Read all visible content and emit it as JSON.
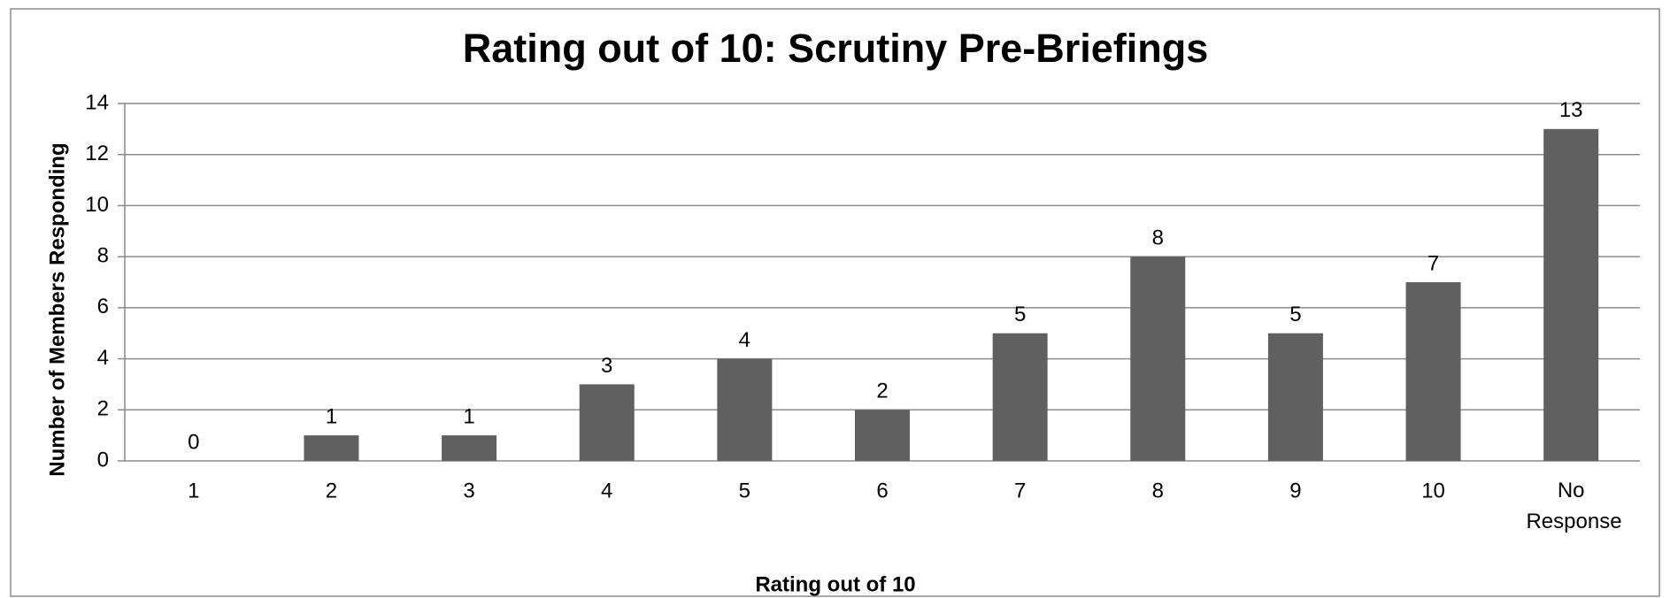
{
  "chart_data": {
    "type": "bar",
    "title": "Rating out of 10: Scrutiny Pre-Briefings",
    "x_label": "Rating out of 10",
    "y_label": "Number of Members Responding",
    "categories": [
      "1",
      "2",
      "3",
      "4",
      "5",
      "6",
      "7",
      "8",
      "9",
      "10",
      "No Response"
    ],
    "values": [
      0,
      1,
      1,
      3,
      4,
      2,
      5,
      8,
      5,
      7,
      13
    ],
    "color": "#606060",
    "ylim": [
      0,
      14
    ],
    "yticks": [
      0,
      2,
      4,
      6,
      8,
      10,
      12,
      14
    ],
    "grid": true
  }
}
